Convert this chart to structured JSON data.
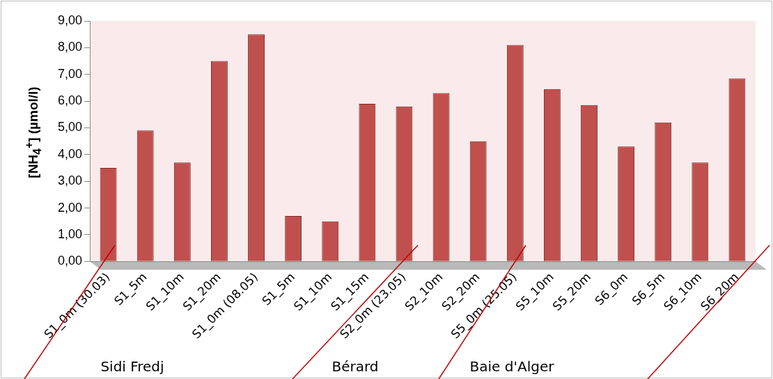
{
  "chart_data": {
    "type": "bar",
    "ylabel": "[NH$_{4}$$^{+}$]  (µmol/l)",
    "categories": [
      "S1_0m (30.03)",
      "S1_5m",
      "S1_10m",
      "S1_20m",
      "S1_0m (08.05)",
      "S1_5m",
      "S1_10m",
      "S1_15m",
      "S2_0m (23.05)",
      "S2_10m",
      "S2_20m",
      "S5_0m (25.05)",
      "S5_10m",
      "S5_20m",
      "S6_0m",
      "S6_5m",
      "S6_10m",
      "S6_20m"
    ],
    "values": [
      3.5,
      4.9,
      3.7,
      7.5,
      8.5,
      1.7,
      1.5,
      5.9,
      5.8,
      6.3,
      4.5,
      8.1,
      6.45,
      5.85,
      4.3,
      5.2,
      3.7,
      6.85
    ],
    "color": "#c0504d",
    "ylim": [
      0,
      9
    ],
    "yticks": [
      {
        "value": 0,
        "label": "0,00"
      },
      {
        "value": 1,
        "label": "1,00"
      },
      {
        "value": 2,
        "label": "2,00"
      },
      {
        "value": 3,
        "label": "3,00"
      },
      {
        "value": 4,
        "label": "4,00"
      },
      {
        "value": 5,
        "label": "5,00"
      },
      {
        "value": 6,
        "label": "6,00"
      },
      {
        "value": 7,
        "label": "7,00"
      },
      {
        "value": 8,
        "label": "8,00"
      },
      {
        "value": 9,
        "label": "9,00"
      }
    ],
    "grid": false,
    "legend": false,
    "annotations": [
      "Sidi Fredj",
      "Bérard",
      "Baie d'Alger"
    ]
  }
}
